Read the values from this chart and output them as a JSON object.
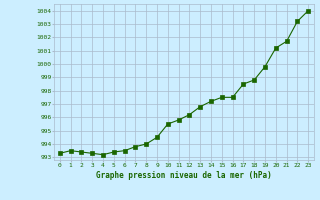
{
  "x": [
    0,
    1,
    2,
    3,
    4,
    5,
    6,
    7,
    8,
    9,
    10,
    11,
    12,
    13,
    14,
    15,
    16,
    17,
    18,
    19,
    20,
    21,
    22,
    23
  ],
  "y": [
    993.3,
    993.5,
    993.4,
    993.3,
    993.2,
    993.4,
    993.5,
    993.8,
    994.0,
    994.5,
    995.5,
    995.8,
    996.2,
    996.8,
    997.2,
    997.5,
    997.5,
    998.5,
    998.8,
    999.8,
    1001.2,
    1001.7,
    1003.2,
    1004.0
  ],
  "xlabel": "Graphe pression niveau de la mer (hPa)",
  "ylim": [
    992.8,
    1004.5
  ],
  "xlim": [
    -0.5,
    23.5
  ],
  "yticks": [
    993,
    994,
    995,
    996,
    997,
    998,
    999,
    1000,
    1001,
    1002,
    1003,
    1004
  ],
  "xticks": [
    0,
    1,
    2,
    3,
    4,
    5,
    6,
    7,
    8,
    9,
    10,
    11,
    12,
    13,
    14,
    15,
    16,
    17,
    18,
    19,
    20,
    21,
    22,
    23
  ],
  "line_color": "#1a6600",
  "marker_color": "#1a6600",
  "bg_color": "#cceeff",
  "grid_color": "#aabbcc",
  "font_color": "#1a6600"
}
